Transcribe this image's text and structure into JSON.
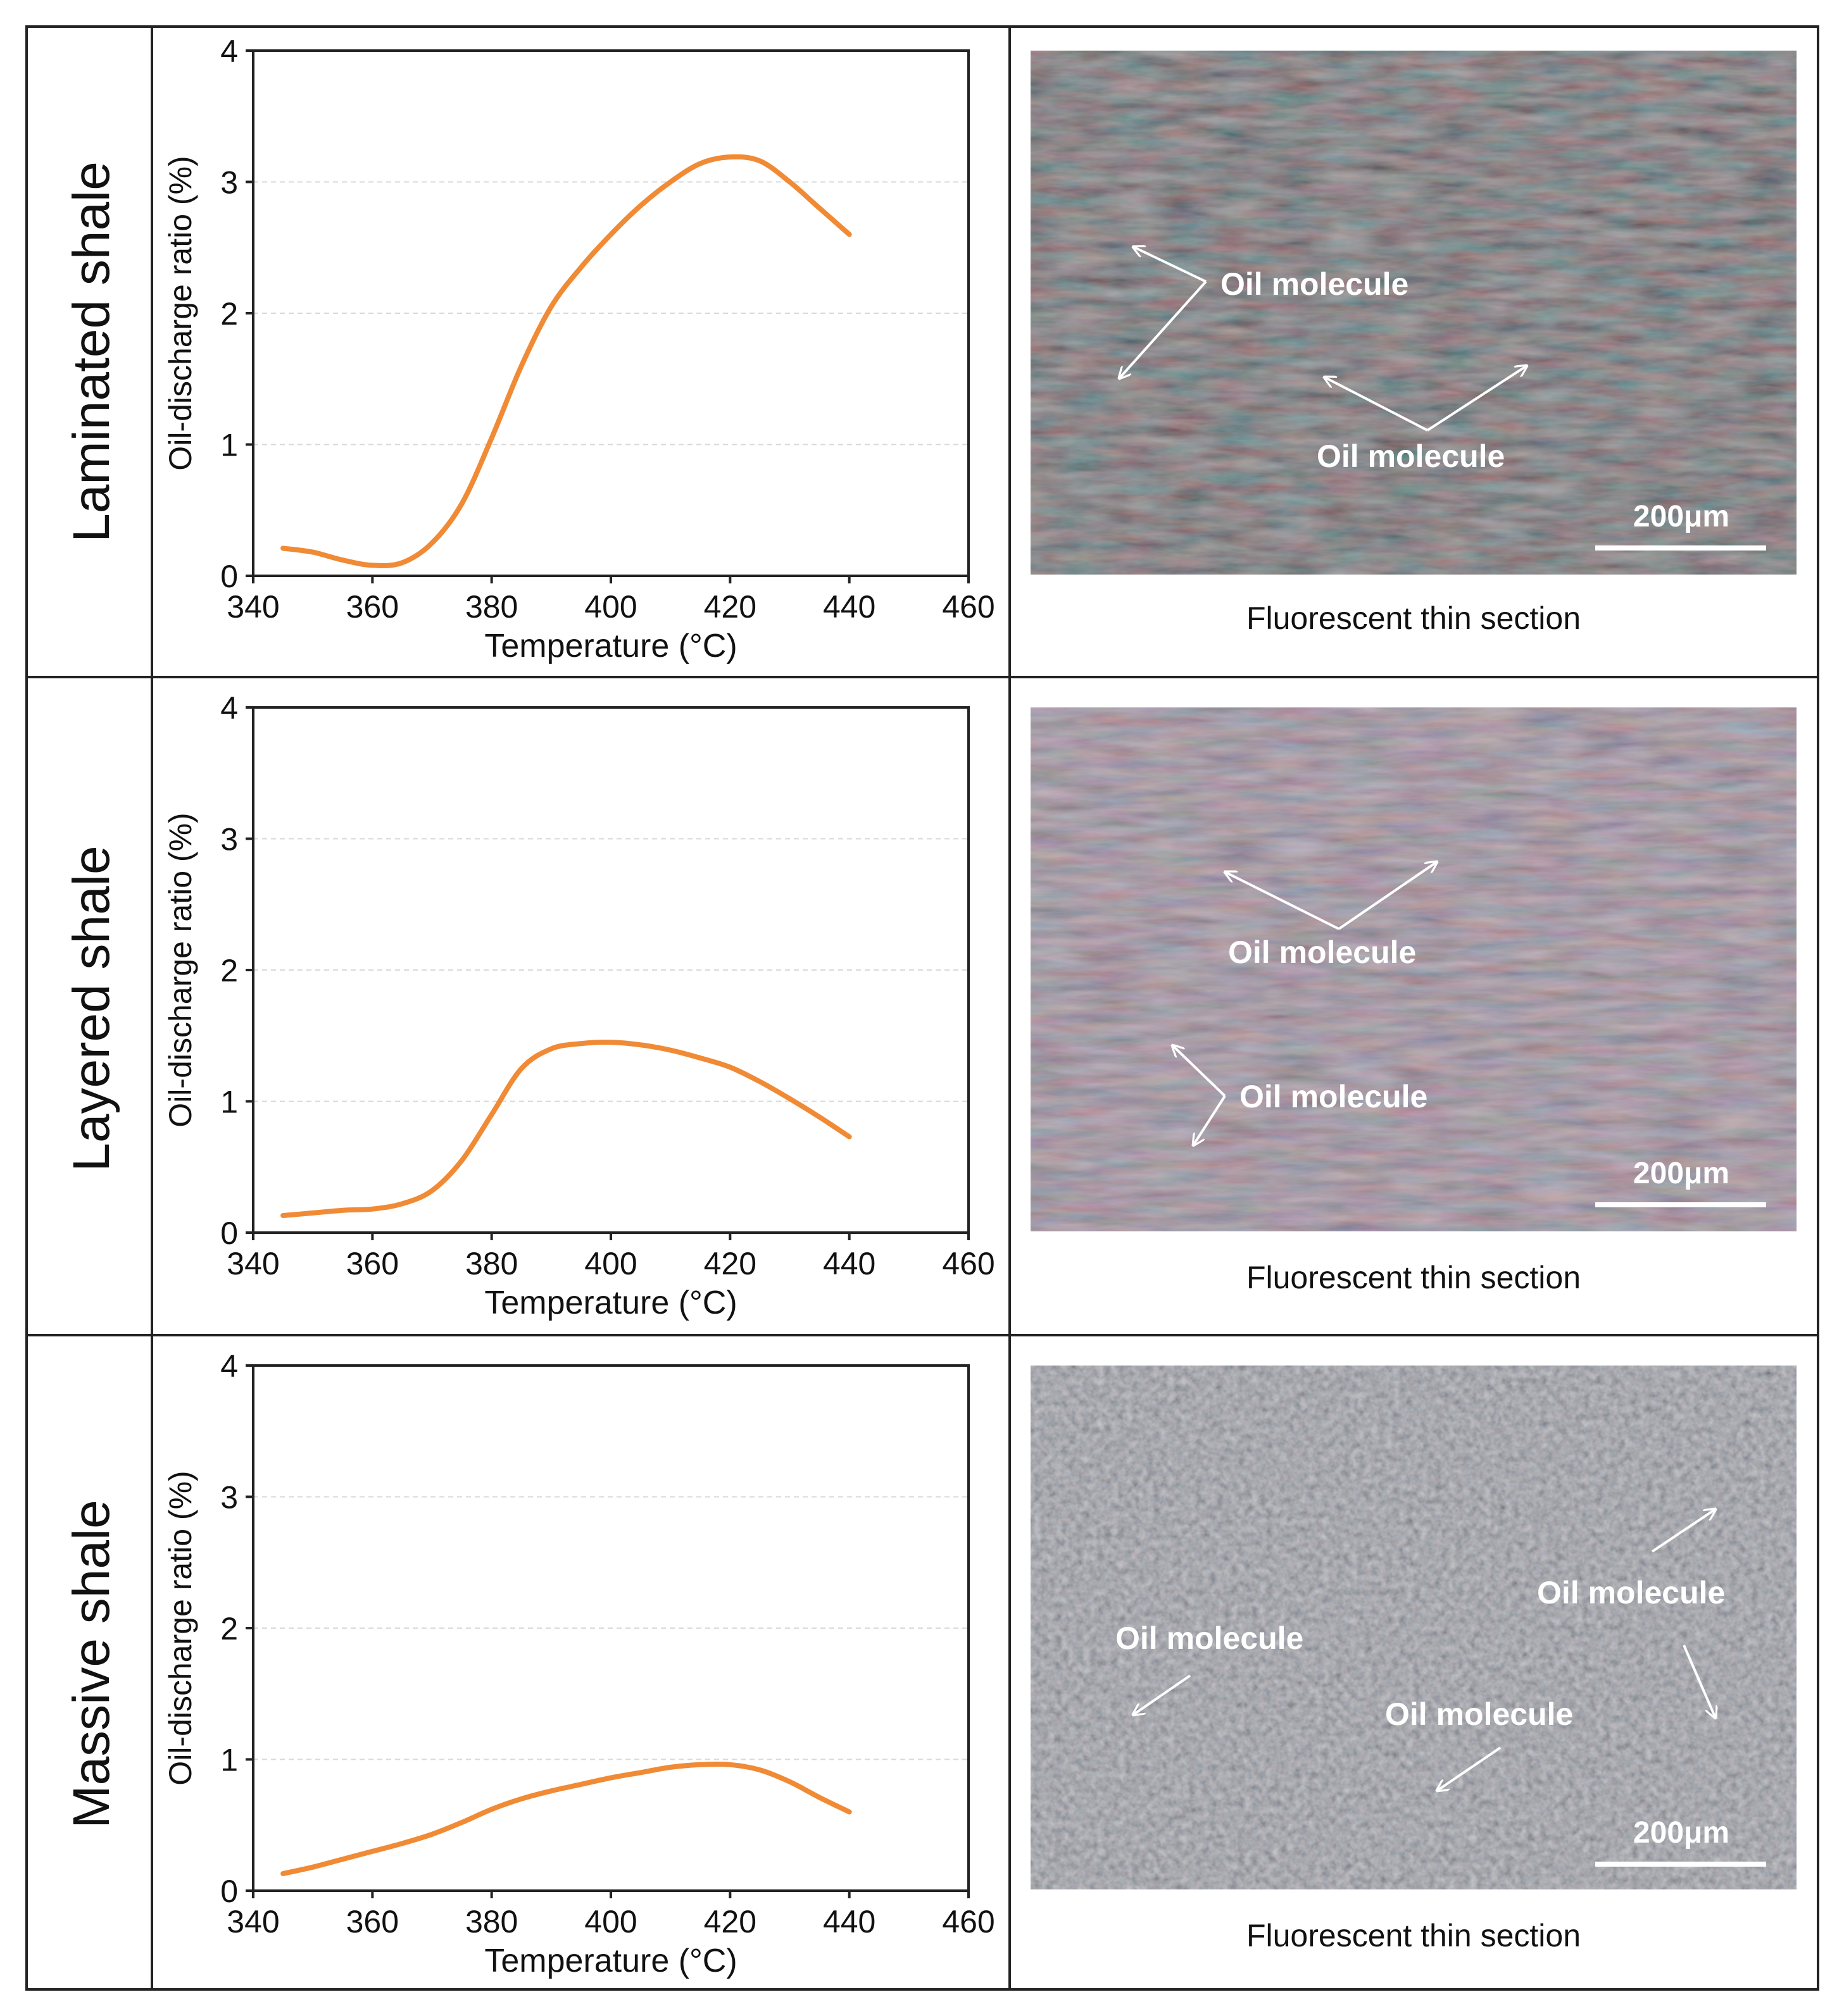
{
  "colors": {
    "curve": "#f08a35",
    "border": "#222222",
    "grid": "#d9d9d9",
    "arrow": "#ffffff"
  },
  "micrograph_label": "Fluorescent thin section",
  "scale_bar_label": "200μm",
  "chart_data": [
    {
      "type": "line",
      "row_label": "Laminated shale",
      "xlabel": "Temperature (°C)",
      "ylabel": "Oil-discharge ratio (%)",
      "xlim": [
        340,
        460
      ],
      "ylim": [
        0,
        4
      ],
      "xticks": [
        340,
        360,
        380,
        400,
        420,
        440,
        460
      ],
      "yticks": [
        0,
        1,
        2,
        3,
        4
      ],
      "grid": "horizontal dashed",
      "series": [
        {
          "name": "Laminated shale",
          "x": [
            345,
            350,
            355,
            360,
            365,
            370,
            375,
            380,
            385,
            390,
            395,
            400,
            405,
            410,
            415,
            420,
            425,
            430,
            435,
            440
          ],
          "y": [
            0.21,
            0.18,
            0.12,
            0.08,
            0.1,
            0.25,
            0.55,
            1.05,
            1.6,
            2.05,
            2.35,
            2.6,
            2.82,
            3.0,
            3.14,
            3.19,
            3.16,
            3.0,
            2.8,
            2.6
          ]
        }
      ],
      "micrograph_annotations": [
        "Oil molecule",
        "Oil molecule"
      ]
    },
    {
      "type": "line",
      "row_label": "Layered shale",
      "xlabel": "Temperature (°C)",
      "ylabel": "Oil-discharge ratio (%)",
      "xlim": [
        340,
        460
      ],
      "ylim": [
        0,
        4
      ],
      "xticks": [
        340,
        360,
        380,
        400,
        420,
        440,
        460
      ],
      "yticks": [
        0,
        1,
        2,
        3,
        4
      ],
      "grid": "horizontal dashed",
      "series": [
        {
          "name": "Layered shale",
          "x": [
            345,
            350,
            355,
            360,
            365,
            370,
            375,
            380,
            385,
            390,
            395,
            400,
            405,
            410,
            415,
            420,
            425,
            430,
            435,
            440
          ],
          "y": [
            0.13,
            0.15,
            0.17,
            0.18,
            0.22,
            0.32,
            0.55,
            0.9,
            1.25,
            1.4,
            1.44,
            1.45,
            1.43,
            1.39,
            1.33,
            1.26,
            1.15,
            1.02,
            0.88,
            0.73
          ]
        }
      ],
      "micrograph_annotations": [
        "Oil molecule",
        "Oil molecule"
      ]
    },
    {
      "type": "line",
      "row_label": "Massive shale",
      "xlabel": "Temperature (°C)",
      "ylabel": "Oil-discharge ratio (%)",
      "xlim": [
        340,
        460
      ],
      "ylim": [
        0,
        4
      ],
      "xticks": [
        340,
        360,
        380,
        400,
        420,
        440,
        460
      ],
      "yticks": [
        0,
        1,
        2,
        3,
        4
      ],
      "grid": "horizontal dashed",
      "series": [
        {
          "name": "Massive shale",
          "x": [
            345,
            350,
            355,
            360,
            365,
            370,
            375,
            380,
            385,
            390,
            395,
            400,
            405,
            410,
            415,
            420,
            425,
            430,
            435,
            440
          ],
          "y": [
            0.13,
            0.18,
            0.24,
            0.3,
            0.36,
            0.43,
            0.52,
            0.62,
            0.7,
            0.76,
            0.81,
            0.86,
            0.9,
            0.94,
            0.96,
            0.96,
            0.92,
            0.83,
            0.71,
            0.6
          ]
        }
      ],
      "micrograph_annotations": [
        "Oil molecule",
        "Oil molecule",
        "Oil molecule"
      ]
    }
  ]
}
